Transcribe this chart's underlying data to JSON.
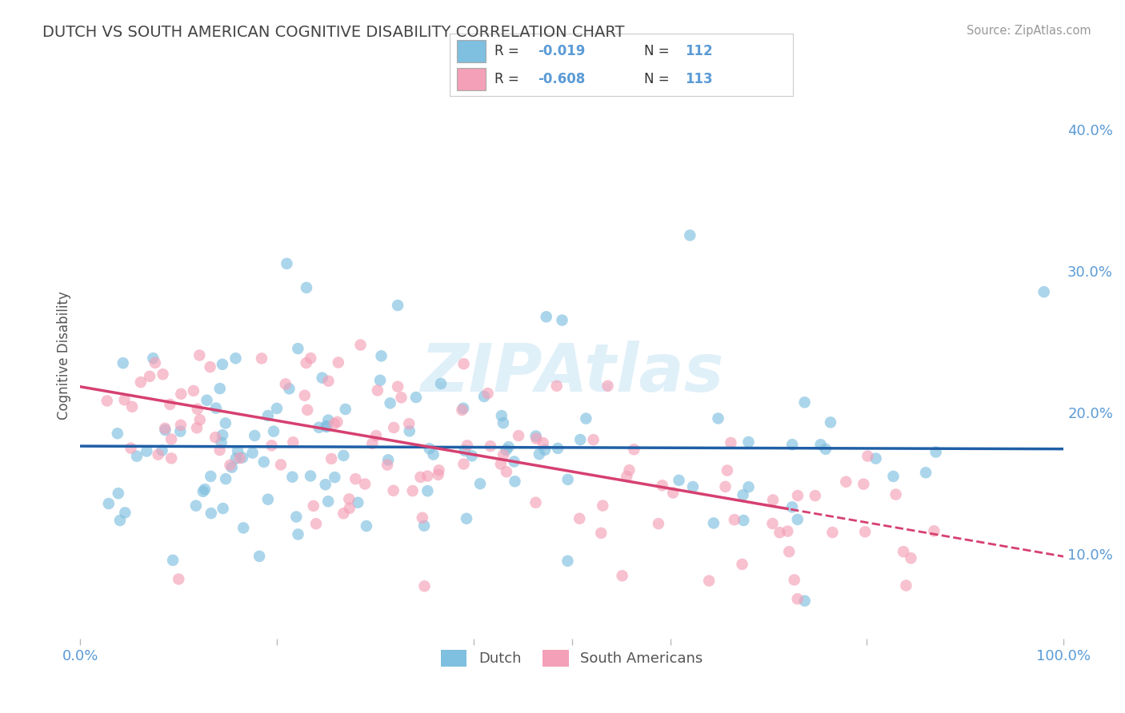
{
  "title": "DUTCH VS SOUTH AMERICAN COGNITIVE DISABILITY CORRELATION CHART",
  "source": "Source: ZipAtlas.com",
  "ylabel": "Cognitive Disability",
  "y_ticks": [
    0.1,
    0.2,
    0.3,
    0.4
  ],
  "y_tick_labels": [
    "10.0%",
    "20.0%",
    "30.0%",
    "40.0%"
  ],
  "xlim": [
    0.0,
    1.0
  ],
  "ylim": [
    0.04,
    0.44
  ],
  "dutch_color": "#7fbfdf",
  "sa_color": "#f4a0b8",
  "dutch_R": -0.019,
  "dutch_N": 112,
  "sa_R": -0.608,
  "sa_N": 113,
  "dutch_line_color": "#1f5fa6",
  "sa_line_color": "#d64070",
  "background_color": "#ffffff",
  "grid_color": "#cccccc",
  "title_color": "#444444",
  "axis_color": "#5b9bd5",
  "watermark_text": "ZIPAtlas",
  "dutch_line_intercept": 0.176,
  "dutch_line_slope": -0.002,
  "sa_line_intercept": 0.218,
  "sa_line_slope": -0.12,
  "sa_line_dash_start": 0.72
}
